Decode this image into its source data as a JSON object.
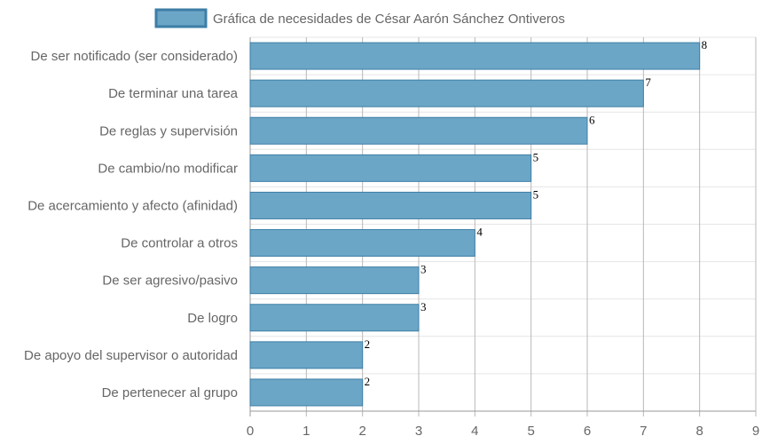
{
  "chart_data": {
    "type": "bar",
    "orientation": "horizontal",
    "categories": [
      "De ser notificado (ser considerado)",
      "De terminar una tarea",
      "De reglas y supervisión",
      "De cambio/no modificar",
      "De acercamiento y afecto (afinidad)",
      "De controlar a otros",
      "De ser agresivo/pasivo",
      "De logro",
      "De apoyo del supervisor o autoridad",
      "De pertenecer al grupo"
    ],
    "series": [
      {
        "name": "Gráfica de necesidades de César Aarón Sánchez Ontiveros",
        "values": [
          8,
          7,
          6,
          5,
          5,
          4,
          3,
          3,
          2,
          2
        ],
        "fill_color": "#6ca6c6",
        "border_color": "#3d7ea6"
      }
    ],
    "x_ticks": [
      "0",
      "1",
      "2",
      "3",
      "4",
      "5",
      "6",
      "7",
      "8",
      "9"
    ],
    "xlim": [
      0,
      9
    ],
    "grid": true,
    "legend_position": "top",
    "data_labels": true
  }
}
